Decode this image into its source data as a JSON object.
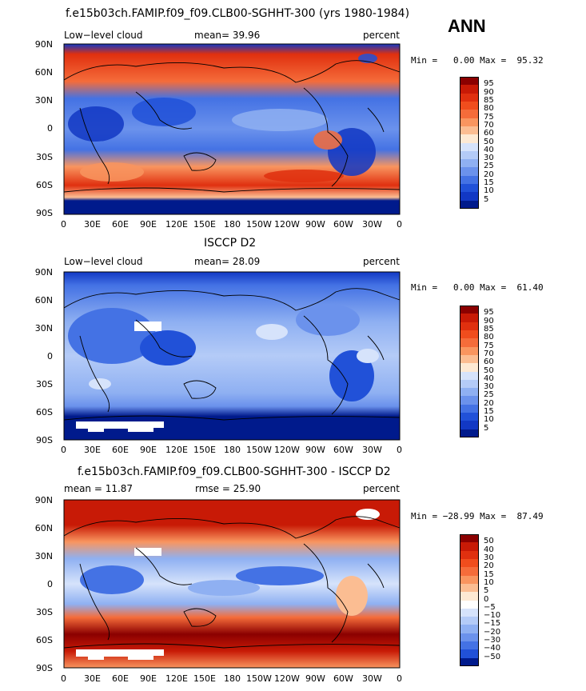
{
  "season": "ANN",
  "longitude_ticks": [
    "0",
    "30E",
    "60E",
    "90E",
    "120E",
    "150E",
    "180",
    "150W",
    "120W",
    "90W",
    "60W",
    "30W",
    "0"
  ],
  "latitude_ticks": [
    "90N",
    "60N",
    "30N",
    "0",
    "30S",
    "60S",
    "90S"
  ],
  "panels": [
    {
      "title": "f.e15b03ch.FAMIP.f09_f09.CLB00-SGHHT-300 (yrs 1980-1984)",
      "left_label": "Low−level cloud",
      "center_label": "mean=  39.96",
      "right_label": "percent",
      "stats": "Min =   0.00 Max =  95.32",
      "colorbar_labels": [
        "95",
        "90",
        "85",
        "80",
        "75",
        "70",
        "60",
        "50",
        "40",
        "30",
        "25",
        "20",
        "15",
        "10",
        "5"
      ],
      "colorbar_colors": [
        "#8b0000",
        "#c81a06",
        "#e0300f",
        "#f04d1d",
        "#f56c3a",
        "#f9955f",
        "#fbbd92",
        "#fde9d3",
        "#d6e3fb",
        "#b4cbf7",
        "#8fb0f2",
        "#6b92ec",
        "#4472e4",
        "#2151d8",
        "#1238c4",
        "#001a8c"
      ]
    },
    {
      "title": "ISCCP D2",
      "left_label": "Low−level cloud",
      "center_label": "mean=  28.09",
      "right_label": "percent",
      "stats": "Min =   0.00 Max =  61.40",
      "colorbar_labels": [
        "95",
        "90",
        "85",
        "80",
        "75",
        "70",
        "60",
        "50",
        "40",
        "30",
        "25",
        "20",
        "15",
        "10",
        "5"
      ],
      "colorbar_colors": [
        "#8b0000",
        "#c81a06",
        "#e0300f",
        "#f04d1d",
        "#f56c3a",
        "#f9955f",
        "#fbbd92",
        "#fde9d3",
        "#d6e3fb",
        "#b4cbf7",
        "#8fb0f2",
        "#6b92ec",
        "#4472e4",
        "#2151d8",
        "#1238c4",
        "#001a8c"
      ]
    },
    {
      "title": "f.e15b03ch.FAMIP.f09_f09.CLB00-SGHHT-300 - ISCCP D2",
      "left_label": "mean =  11.87",
      "center_label": "rmse =  25.90",
      "right_label": "percent",
      "stats": "Min = −28.99 Max =  87.49",
      "colorbar_labels": [
        "50",
        "40",
        "30",
        "20",
        "15",
        "10",
        "5",
        "0",
        "−5",
        "−10",
        "−15",
        "−20",
        "−30",
        "−40",
        "−50"
      ],
      "colorbar_colors": [
        "#8b0000",
        "#c81a06",
        "#e0300f",
        "#f04d1d",
        "#f56c3a",
        "#f9955f",
        "#fbbd92",
        "#fde9d3",
        "#ffffff",
        "#d6e3fb",
        "#b4cbf7",
        "#8fb0f2",
        "#6b92ec",
        "#4472e4",
        "#2151d8",
        "#001a8c"
      ]
    }
  ]
}
